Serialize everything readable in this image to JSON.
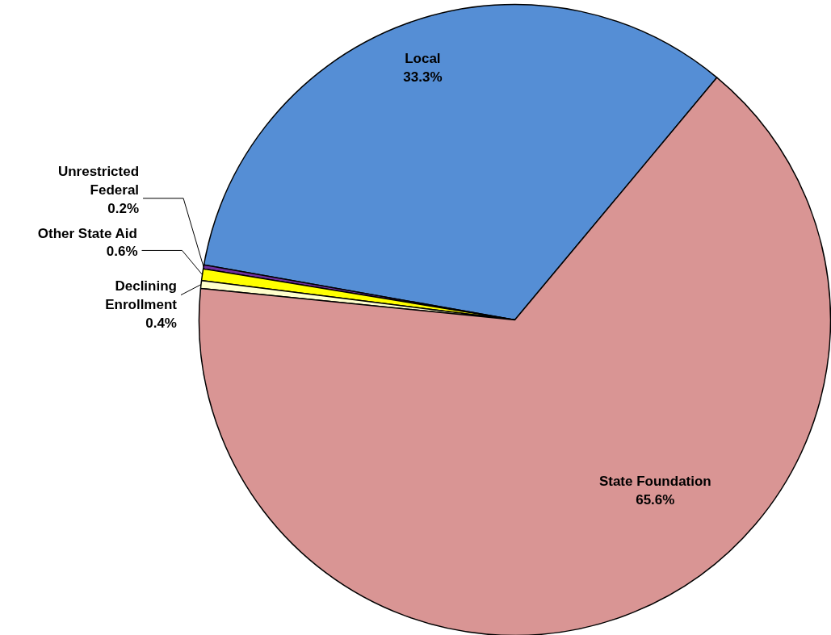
{
  "chart_data": {
    "type": "pie",
    "categories": [
      "Local",
      "Unrestricted Federal",
      "Other State Aid",
      "Declining Enrollment",
      "State Foundation"
    ],
    "values": [
      33.3,
      0.2,
      0.6,
      0.4,
      65.6
    ],
    "value_labels": [
      "33.3%",
      "0.2%",
      "0.6%",
      "0.4%",
      "65.6%"
    ],
    "colors": [
      "#558ed5",
      "#7030a0",
      "#ffff00",
      "#ffffcc",
      "#d99594"
    ]
  }
}
